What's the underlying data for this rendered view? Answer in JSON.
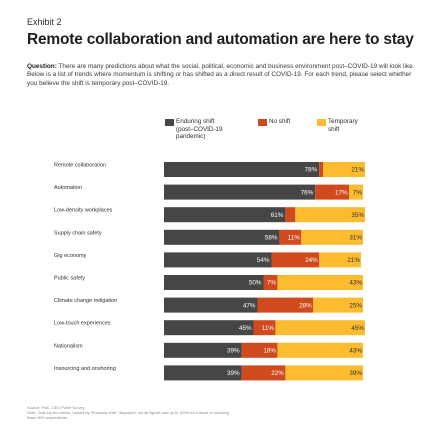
{
  "header": {
    "exhibit": "Exhibit 2",
    "title": "Remote collaboration and automation are here to stay",
    "question_label": "Question:",
    "question_text": " There are many predictions about what the social, political, economic and business environment post–COVID-19 will look like. Below is a list of trends where momentum is shifting or has shifted as a direct result of COVID-19. For each trend, please select whether you believe the shift is temporary post–COVID-19."
  },
  "legend": [
    {
      "lines": [
        "Enduring shift",
        "(post–COVID-19",
        "pandemic)"
      ],
      "color": "#464646"
    },
    {
      "lines": [
        "No shift"
      ],
      "color": "#d04a1e"
    },
    {
      "lines": [
        "Temporary",
        "shift"
      ],
      "color": "#fdbb30"
    }
  ],
  "chart_data": {
    "type": "bar",
    "orientation": "horizontal",
    "stacked": true,
    "categories": [
      "Remote collaboration",
      "Automation",
      "Low-density workplaces",
      "Supply chain safety",
      "Gig economy",
      "Public safety",
      "Climate change mitigation",
      "Low-touch experiences",
      "Nationalism",
      "Insourcing and onshoring"
    ],
    "series": [
      {
        "name": "Enduring shift (post–COVID-19 pandemic)",
        "color": "#464646",
        "values": [
          78,
          76,
          61,
          58,
          54,
          50,
          47,
          45,
          39,
          39
        ],
        "labels": [
          "78%",
          "76%",
          "61%",
          "58%",
          "54%",
          "50%",
          "47%",
          "45%",
          "39%",
          "39%"
        ]
      },
      {
        "name": "No shift",
        "color": "#d04a1e",
        "values": [
          2,
          17,
          5,
          11,
          24,
          7,
          28,
          11,
          18,
          22
        ],
        "labels": [
          "2%",
          "17%",
          "5%",
          "11%",
          "24%",
          "7%",
          "28%",
          "11%",
          "18%",
          "22%"
        ]
      },
      {
        "name": "Temporary shift",
        "color": "#fdbb30",
        "values": [
          21,
          7,
          35,
          31,
          21,
          43,
          25,
          45,
          43,
          39
        ],
        "labels": [
          "21%",
          "7%",
          "35%",
          "31%",
          "21%",
          "43%",
          "25%",
          "45%",
          "43%",
          "39%"
        ]
      }
    ],
    "xlim": [
      0,
      101
    ]
  },
  "footer": {
    "source": "Source: PwC, CEO Panel Survey",
    "note": "Note: Only top ten trends, ranked by “Enduring shift,” displayed; not all figures add up to 100% as a result of rounding.",
    "base": "Base: 699 respondents"
  }
}
